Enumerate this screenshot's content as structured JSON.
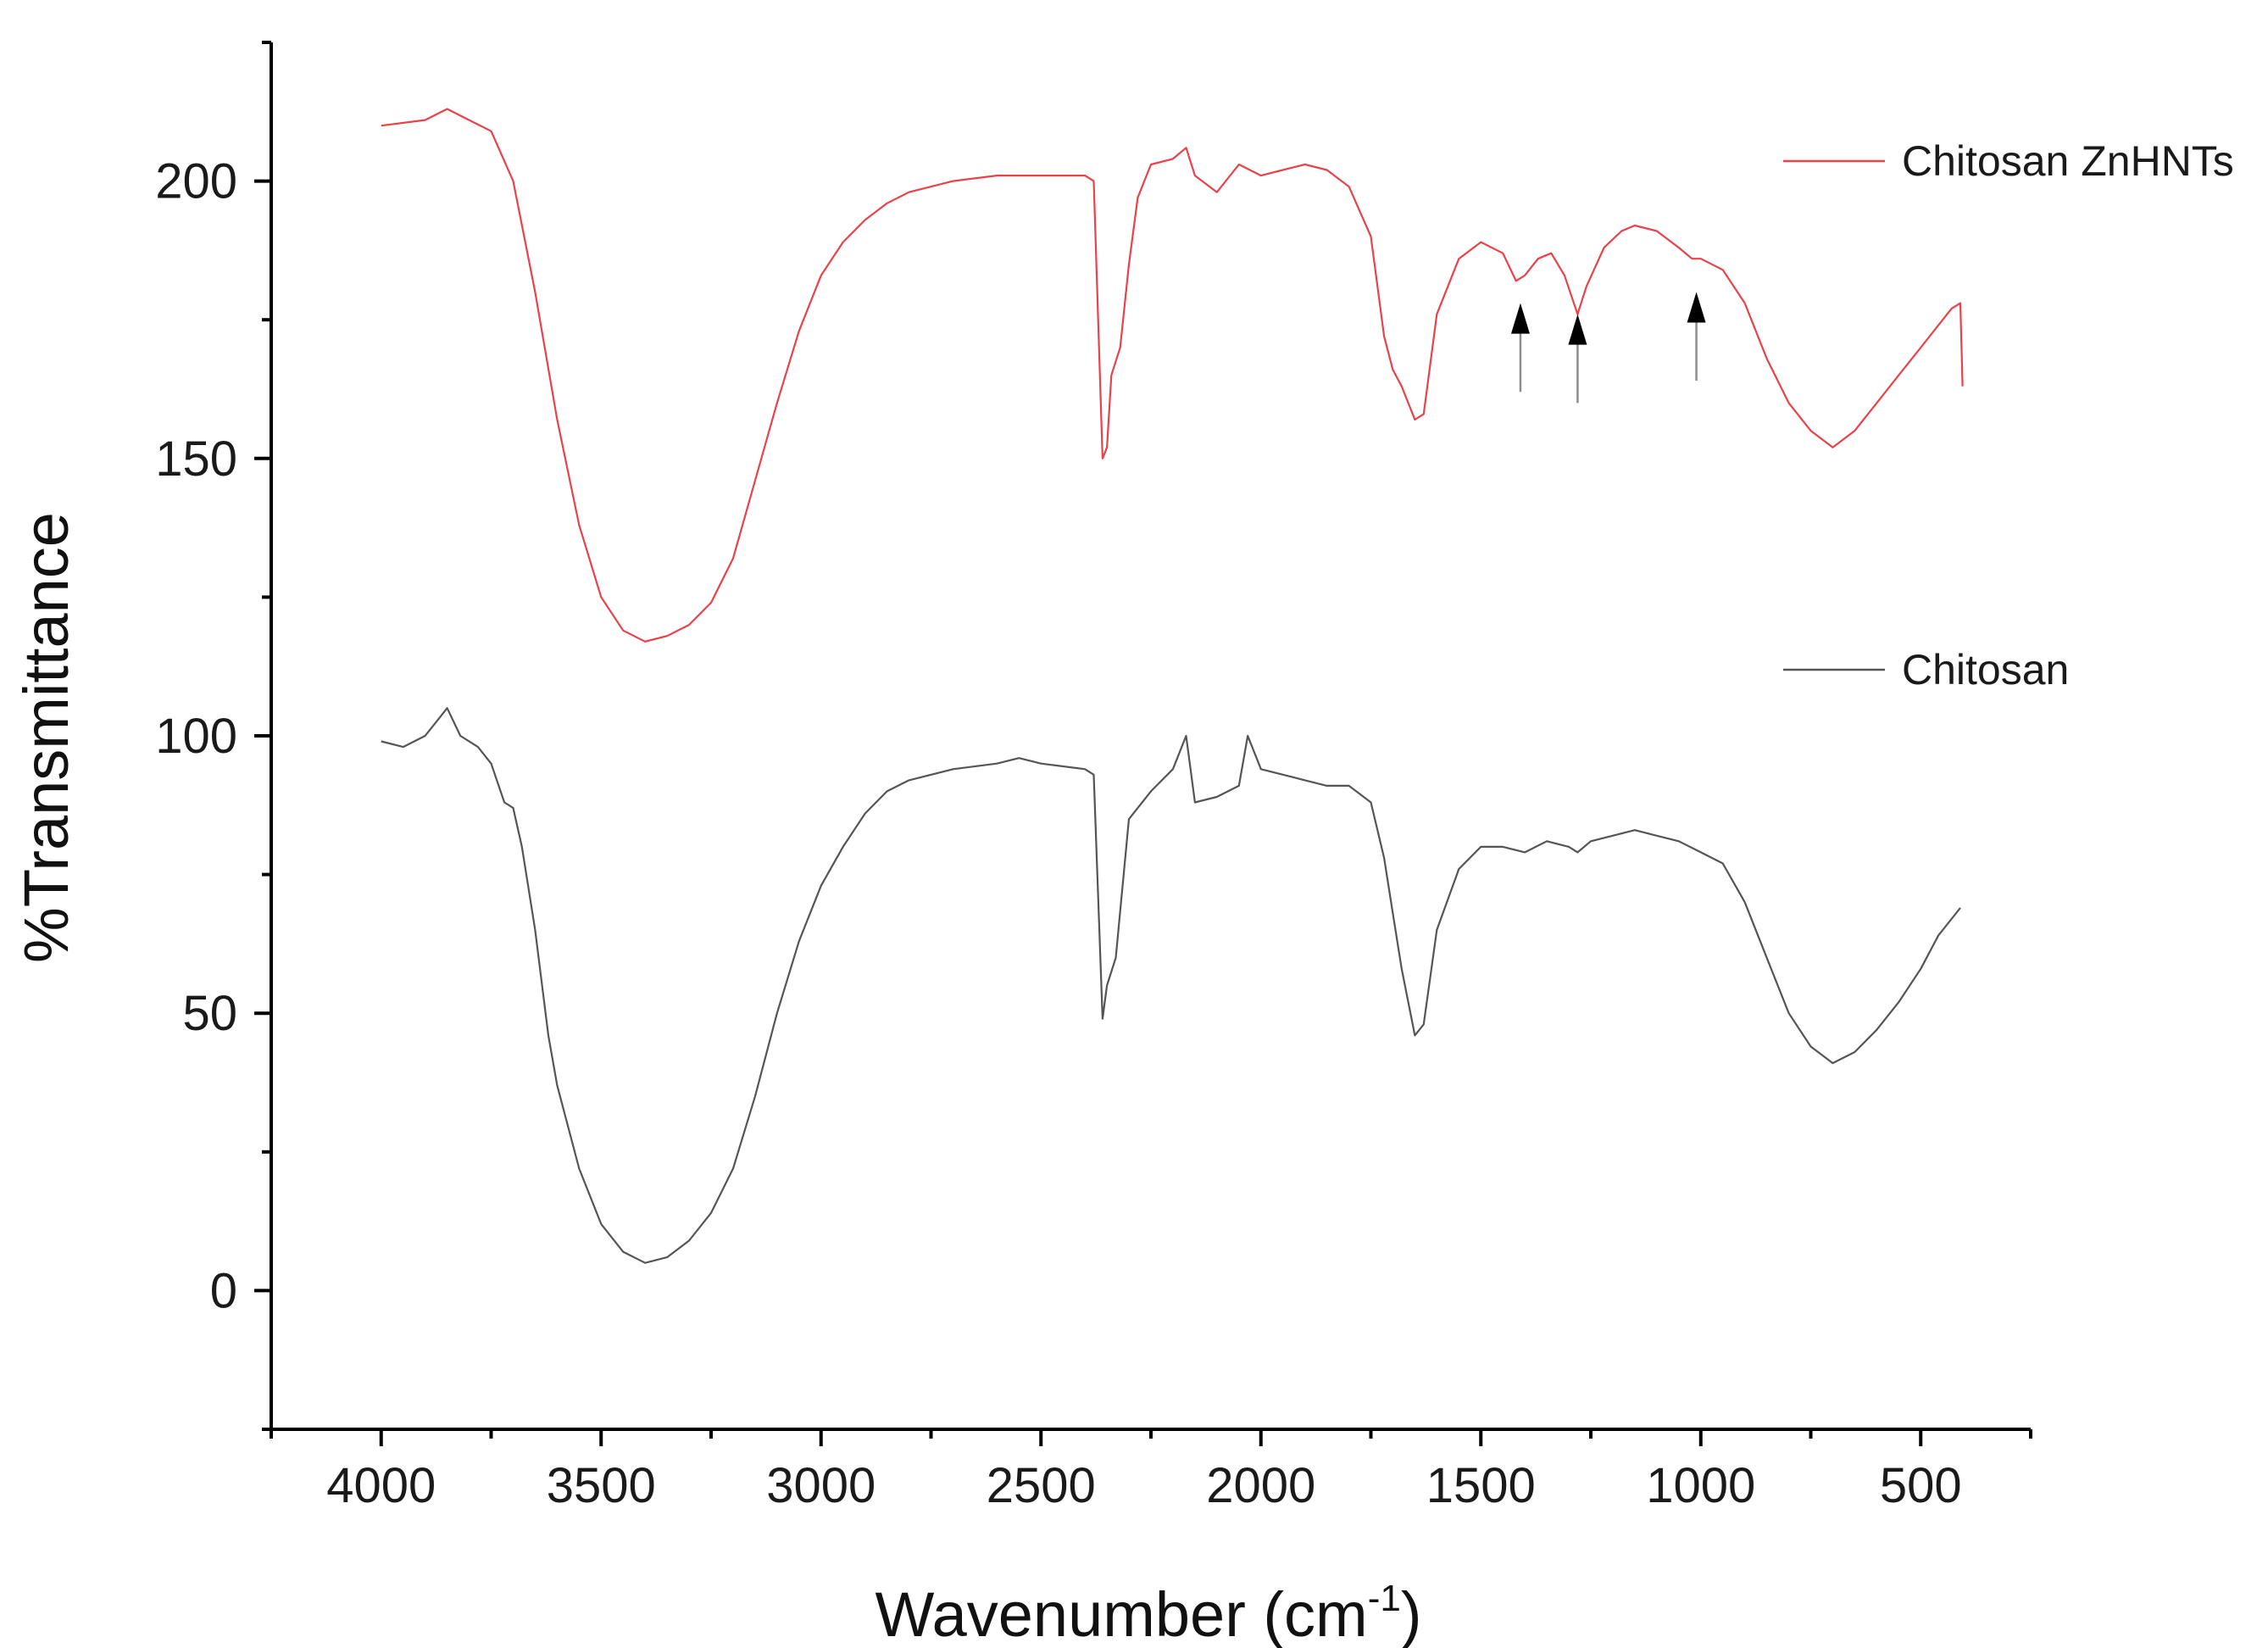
{
  "chart_data": {
    "type": "line",
    "xlabel": "Wavenumber",
    "xlabel_unit_base": "cm",
    "xlabel_unit_exp": "-1",
    "ylabel": "%Transmittance",
    "xlim": [
      4250,
      250
    ],
    "ylim": [
      -25,
      225
    ],
    "xticks": [
      4000,
      3500,
      3000,
      2500,
      2000,
      1500,
      1000,
      500
    ],
    "xtick_labels": [
      "4000",
      "3500",
      "3000",
      "2500",
      "2000",
      "1500",
      "1000",
      "500"
    ],
    "yticks": [
      0,
      50,
      100,
      150,
      200
    ],
    "ytick_labels": [
      "0",
      "50",
      "100",
      "150",
      "200"
    ],
    "legend_position": "right",
    "series": [
      {
        "name": "Chitosan ZnHNTs",
        "color": "#e8424a",
        "points": [
          [
            4000,
            210
          ],
          [
            3900,
            211
          ],
          [
            3850,
            213
          ],
          [
            3800,
            211
          ],
          [
            3750,
            209
          ],
          [
            3700,
            200
          ],
          [
            3650,
            180
          ],
          [
            3600,
            157
          ],
          [
            3550,
            138
          ],
          [
            3500,
            125
          ],
          [
            3450,
            119
          ],
          [
            3400,
            117
          ],
          [
            3350,
            118
          ],
          [
            3300,
            120
          ],
          [
            3250,
            124
          ],
          [
            3200,
            132
          ],
          [
            3150,
            146
          ],
          [
            3100,
            160
          ],
          [
            3050,
            173
          ],
          [
            3000,
            183
          ],
          [
            2950,
            189
          ],
          [
            2900,
            193
          ],
          [
            2850,
            196
          ],
          [
            2800,
            198
          ],
          [
            2700,
            200
          ],
          [
            2600,
            201
          ],
          [
            2500,
            201
          ],
          [
            2400,
            201
          ],
          [
            2380,
            200
          ],
          [
            2360,
            150
          ],
          [
            2350,
            152
          ],
          [
            2340,
            165
          ],
          [
            2320,
            170
          ],
          [
            2300,
            185
          ],
          [
            2280,
            197
          ],
          [
            2250,
            203
          ],
          [
            2200,
            204
          ],
          [
            2170,
            206
          ],
          [
            2150,
            201
          ],
          [
            2100,
            198
          ],
          [
            2050,
            203
          ],
          [
            2000,
            201
          ],
          [
            1950,
            202
          ],
          [
            1900,
            203
          ],
          [
            1850,
            202
          ],
          [
            1800,
            199
          ],
          [
            1750,
            190
          ],
          [
            1720,
            172
          ],
          [
            1700,
            166
          ],
          [
            1680,
            163
          ],
          [
            1650,
            157
          ],
          [
            1630,
            158
          ],
          [
            1600,
            176
          ],
          [
            1550,
            186
          ],
          [
            1500,
            189
          ],
          [
            1450,
            187
          ],
          [
            1420,
            182
          ],
          [
            1400,
            183
          ],
          [
            1370,
            186
          ],
          [
            1340,
            187
          ],
          [
            1310,
            183
          ],
          [
            1280,
            176
          ],
          [
            1260,
            181
          ],
          [
            1220,
            188
          ],
          [
            1180,
            191
          ],
          [
            1150,
            192
          ],
          [
            1100,
            191
          ],
          [
            1050,
            188
          ],
          [
            1020,
            186
          ],
          [
            1000,
            186
          ],
          [
            950,
            184
          ],
          [
            900,
            178
          ],
          [
            850,
            168
          ],
          [
            800,
            160
          ],
          [
            750,
            155
          ],
          [
            700,
            152
          ],
          [
            650,
            155
          ],
          [
            600,
            160
          ],
          [
            550,
            165
          ],
          [
            500,
            170
          ],
          [
            450,
            175
          ],
          [
            430,
            177
          ],
          [
            410,
            178
          ],
          [
            405,
            163
          ]
        ]
      },
      {
        "name": "Chitosan",
        "color": "#555555",
        "points": [
          [
            4000,
            99
          ],
          [
            3950,
            98
          ],
          [
            3900,
            100
          ],
          [
            3870,
            103
          ],
          [
            3850,
            105
          ],
          [
            3820,
            100
          ],
          [
            3780,
            98
          ],
          [
            3750,
            95
          ],
          [
            3720,
            88
          ],
          [
            3700,
            87
          ],
          [
            3680,
            80
          ],
          [
            3650,
            65
          ],
          [
            3620,
            46
          ],
          [
            3600,
            37
          ],
          [
            3550,
            22
          ],
          [
            3500,
            12
          ],
          [
            3450,
            7
          ],
          [
            3400,
            5
          ],
          [
            3350,
            6
          ],
          [
            3300,
            9
          ],
          [
            3250,
            14
          ],
          [
            3200,
            22
          ],
          [
            3150,
            35
          ],
          [
            3100,
            50
          ],
          [
            3050,
            63
          ],
          [
            3000,
            73
          ],
          [
            2950,
            80
          ],
          [
            2900,
            86
          ],
          [
            2850,
            90
          ],
          [
            2800,
            92
          ],
          [
            2700,
            94
          ],
          [
            2600,
            95
          ],
          [
            2550,
            96
          ],
          [
            2500,
            95
          ],
          [
            2400,
            94
          ],
          [
            2380,
            93
          ],
          [
            2360,
            49
          ],
          [
            2350,
            55
          ],
          [
            2330,
            60
          ],
          [
            2300,
            85
          ],
          [
            2250,
            90
          ],
          [
            2200,
            94
          ],
          [
            2170,
            100
          ],
          [
            2150,
            88
          ],
          [
            2100,
            89
          ],
          [
            2050,
            91
          ],
          [
            2030,
            100
          ],
          [
            2000,
            94
          ],
          [
            1950,
            93
          ],
          [
            1900,
            92
          ],
          [
            1850,
            91
          ],
          [
            1800,
            91
          ],
          [
            1750,
            88
          ],
          [
            1720,
            78
          ],
          [
            1700,
            68
          ],
          [
            1680,
            58
          ],
          [
            1650,
            46
          ],
          [
            1630,
            48
          ],
          [
            1600,
            65
          ],
          [
            1550,
            76
          ],
          [
            1500,
            80
          ],
          [
            1450,
            80
          ],
          [
            1400,
            79
          ],
          [
            1350,
            81
          ],
          [
            1300,
            80
          ],
          [
            1280,
            79
          ],
          [
            1250,
            81
          ],
          [
            1200,
            82
          ],
          [
            1150,
            83
          ],
          [
            1100,
            82
          ],
          [
            1050,
            81
          ],
          [
            1000,
            79
          ],
          [
            950,
            77
          ],
          [
            900,
            70
          ],
          [
            850,
            60
          ],
          [
            800,
            50
          ],
          [
            750,
            44
          ],
          [
            700,
            41
          ],
          [
            650,
            43
          ],
          [
            600,
            47
          ],
          [
            550,
            52
          ],
          [
            500,
            58
          ],
          [
            460,
            64
          ],
          [
            430,
            67
          ],
          [
            410,
            69
          ]
        ]
      }
    ],
    "annotations": [
      {
        "type": "arrow",
        "x": 1410,
        "y_from": 162,
        "y_to": 178
      },
      {
        "type": "arrow",
        "x": 1280,
        "y_from": 160,
        "y_to": 176
      },
      {
        "type": "arrow",
        "x": 1010,
        "y_from": 164,
        "y_to": 180
      }
    ]
  }
}
